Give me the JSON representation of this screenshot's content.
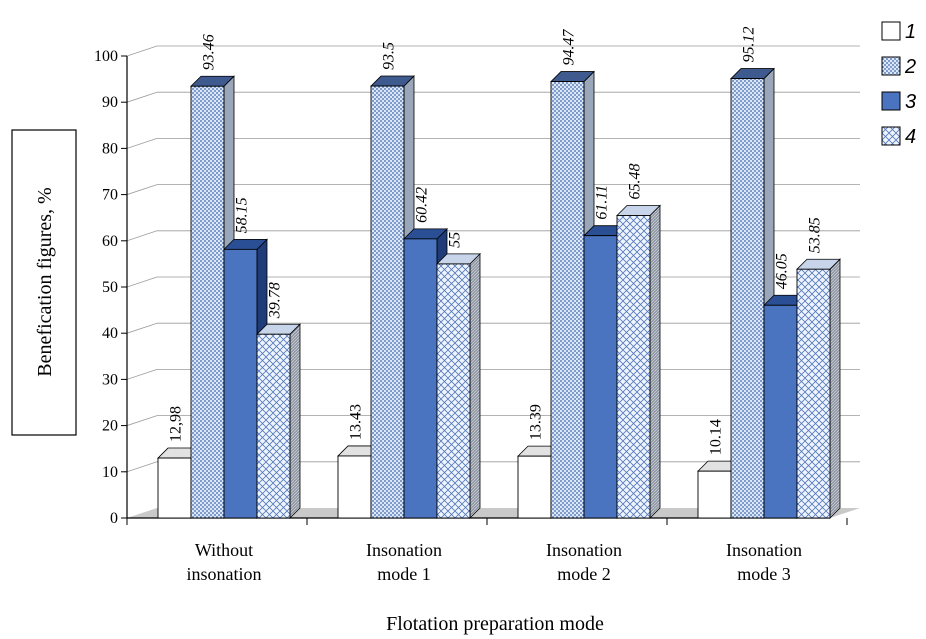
{
  "chart_data": {
    "type": "bar",
    "title": "",
    "xlabel": "Flotation preparation mode",
    "ylabel": "Benefication figures, %",
    "ylim": [
      0,
      100
    ],
    "yticks": [
      "0",
      "10",
      "20",
      "30",
      "40",
      "50",
      "60",
      "70",
      "80",
      "90",
      "100"
    ],
    "categories": [
      [
        "Without",
        "insonation"
      ],
      [
        "Insonation",
        "mode 1"
      ],
      [
        "Insonation",
        "mode 2"
      ],
      [
        "Insonation",
        "mode 3"
      ]
    ],
    "series": [
      {
        "name": "1",
        "values": [
          12.98,
          13.43,
          13.39,
          10.14
        ],
        "labels": [
          "12,98",
          "13.43",
          "13.39",
          "10.14"
        ],
        "color": "#ffffff",
        "pattern": "plain"
      },
      {
        "name": "2",
        "values": [
          93.46,
          93.5,
          94.47,
          95.12
        ],
        "labels": [
          "93.46",
          "93.5",
          "94.47",
          "95.12"
        ],
        "color": "#dbe8f8",
        "pattern": "dots"
      },
      {
        "name": "3",
        "values": [
          58.15,
          60.42,
          61.11,
          46.05
        ],
        "labels": [
          "58.15",
          "60.42",
          "61.11",
          "46.05"
        ],
        "color": "#4a74bf",
        "pattern": "solid"
      },
      {
        "name": "4",
        "values": [
          39.78,
          55,
          65.48,
          53.85
        ],
        "labels": [
          "39.78",
          "55",
          "65.48",
          "53.85"
        ],
        "color": "#eef5ff",
        "pattern": "crosshatch"
      }
    ],
    "grid": true,
    "legend": "top-right"
  }
}
